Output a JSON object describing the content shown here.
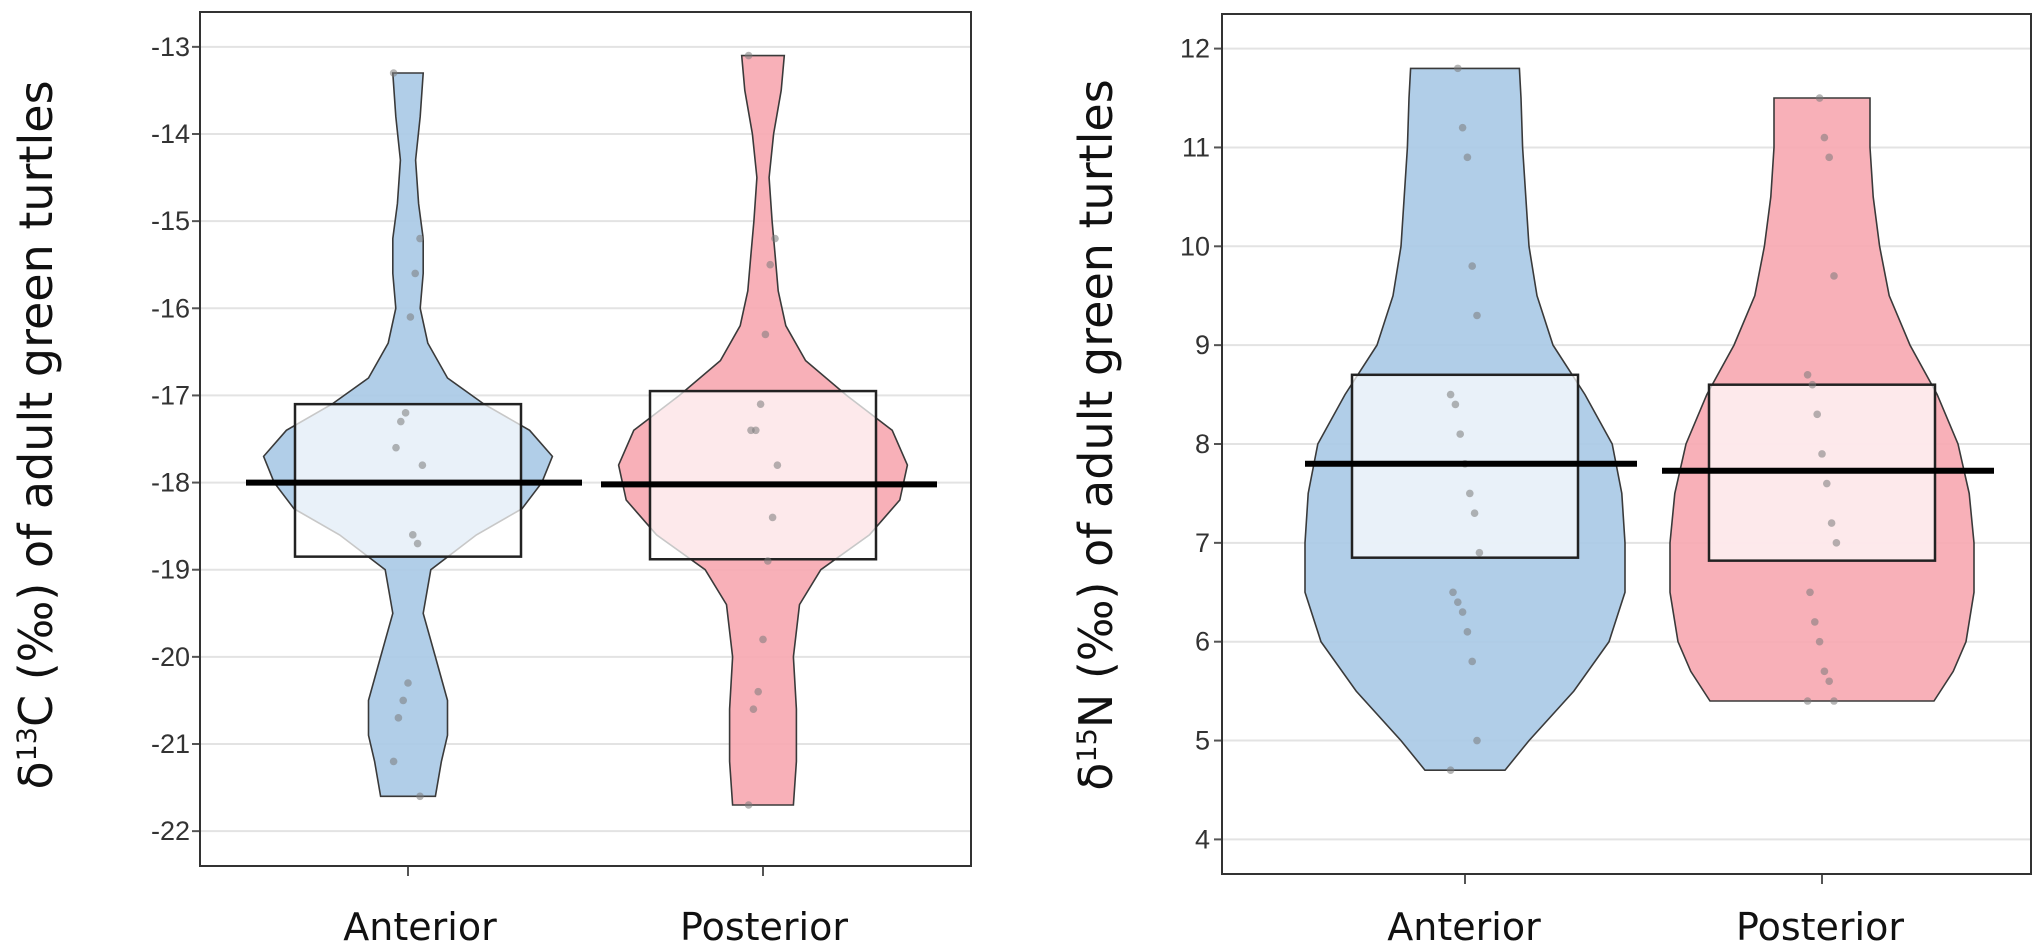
{
  "chart_data": [
    {
      "type": "pirate",
      "ylabel_parts": [
        "δ",
        "13",
        "C  (‰) of adult green turtles"
      ],
      "categories": [
        "Anterior",
        "Posterior"
      ],
      "ylim": [
        -22.4,
        -12.6
      ],
      "yticks": [
        -13,
        -14,
        -15,
        -16,
        -17,
        -18,
        -19,
        -20,
        -21,
        -22
      ],
      "grid": true,
      "groups": [
        {
          "name": "Anterior",
          "color": "#a9c9e6",
          "mean": -18.0,
          "box": [
            -18.85,
            -17.1
          ],
          "range": [
            -21.6,
            -13.3
          ],
          "points": [
            -13.3,
            -15.2,
            -15.6,
            -16.1,
            -17.2,
            -17.3,
            -17.6,
            -17.8,
            -18.7,
            -18.6,
            -20.3,
            -20.5,
            -20.7,
            -21.2,
            -21.6
          ],
          "density": [
            [
              -21.6,
              0.18
            ],
            [
              -21.2,
              0.22
            ],
            [
              -20.9,
              0.26
            ],
            [
              -20.5,
              0.26
            ],
            [
              -20.0,
              0.18
            ],
            [
              -19.5,
              0.1
            ],
            [
              -19.0,
              0.15
            ],
            [
              -18.6,
              0.45
            ],
            [
              -18.3,
              0.75
            ],
            [
              -18.0,
              0.88
            ],
            [
              -17.7,
              0.95
            ],
            [
              -17.4,
              0.8
            ],
            [
              -17.1,
              0.5
            ],
            [
              -16.8,
              0.26
            ],
            [
              -16.4,
              0.13
            ],
            [
              -16.0,
              0.08
            ],
            [
              -15.6,
              0.1
            ],
            [
              -15.2,
              0.1
            ],
            [
              -14.8,
              0.07
            ],
            [
              -14.3,
              0.05
            ],
            [
              -13.8,
              0.08
            ],
            [
              -13.3,
              0.1
            ]
          ]
        },
        {
          "name": "Posterior",
          "color": "#f7a7b0",
          "mean": -18.02,
          "box": [
            -18.88,
            -16.95
          ],
          "range": [
            -21.7,
            -13.1
          ],
          "points": [
            -13.1,
            -15.2,
            -15.5,
            -16.3,
            -17.1,
            -17.4,
            -17.4,
            -17.8,
            -18.4,
            -18.9,
            -19.8,
            -20.4,
            -20.6,
            -21.7
          ],
          "density": [
            [
              -21.7,
              0.2
            ],
            [
              -21.2,
              0.22
            ],
            [
              -20.6,
              0.22
            ],
            [
              -20.0,
              0.2
            ],
            [
              -19.4,
              0.24
            ],
            [
              -19.0,
              0.38
            ],
            [
              -18.6,
              0.7
            ],
            [
              -18.2,
              0.9
            ],
            [
              -17.8,
              0.95
            ],
            [
              -17.4,
              0.85
            ],
            [
              -17.0,
              0.55
            ],
            [
              -16.6,
              0.28
            ],
            [
              -16.2,
              0.15
            ],
            [
              -15.8,
              0.1
            ],
            [
              -15.4,
              0.08
            ],
            [
              -15.0,
              0.06
            ],
            [
              -14.5,
              0.04
            ],
            [
              -14.0,
              0.07
            ],
            [
              -13.5,
              0.12
            ],
            [
              -13.1,
              0.14
            ]
          ]
        }
      ]
    },
    {
      "type": "pirate",
      "ylabel_parts": [
        "δ",
        "15",
        "N (‰) of adult green turtles"
      ],
      "categories": [
        "Anterior",
        "Posterior"
      ],
      "ylim": [
        3.65,
        12.35
      ],
      "yticks": [
        4,
        5,
        6,
        7,
        8,
        9,
        10,
        11,
        12
      ],
      "grid": true,
      "groups": [
        {
          "name": "Anterior",
          "color": "#a9c9e6",
          "mean": 7.8,
          "box": [
            6.85,
            8.7
          ],
          "range": [
            4.7,
            11.8
          ],
          "points": [
            4.7,
            5.0,
            5.8,
            6.1,
            6.3,
            6.4,
            6.5,
            6.9,
            7.3,
            7.5,
            7.8,
            8.1,
            8.4,
            8.5,
            9.3,
            9.8,
            10.9,
            11.2,
            11.8
          ],
          "density": [
            [
              4.7,
              0.25
            ],
            [
              5.0,
              0.4
            ],
            [
              5.5,
              0.68
            ],
            [
              6.0,
              0.9
            ],
            [
              6.5,
              1.0
            ],
            [
              7.0,
              1.0
            ],
            [
              7.5,
              0.98
            ],
            [
              8.0,
              0.92
            ],
            [
              8.5,
              0.75
            ],
            [
              9.0,
              0.55
            ],
            [
              9.5,
              0.45
            ],
            [
              10.0,
              0.4
            ],
            [
              10.5,
              0.38
            ],
            [
              11.0,
              0.36
            ],
            [
              11.5,
              0.35
            ],
            [
              11.8,
              0.34
            ]
          ]
        },
        {
          "name": "Posterior",
          "color": "#f7a7b0",
          "mean": 7.73,
          "box": [
            6.82,
            8.6
          ],
          "range": [
            5.4,
            11.5
          ],
          "points": [
            5.4,
            5.4,
            5.6,
            5.7,
            6.0,
            6.2,
            6.5,
            7.0,
            7.2,
            7.6,
            7.9,
            8.3,
            8.6,
            8.7,
            9.7,
            10.9,
            11.1,
            11.5
          ],
          "density": [
            [
              5.4,
              0.7
            ],
            [
              5.7,
              0.82
            ],
            [
              6.0,
              0.9
            ],
            [
              6.5,
              0.95
            ],
            [
              7.0,
              0.95
            ],
            [
              7.5,
              0.92
            ],
            [
              8.0,
              0.85
            ],
            [
              8.5,
              0.72
            ],
            [
              9.0,
              0.55
            ],
            [
              9.5,
              0.42
            ],
            [
              10.0,
              0.36
            ],
            [
              10.5,
              0.32
            ],
            [
              11.0,
              0.3
            ],
            [
              11.5,
              0.3
            ]
          ]
        }
      ]
    }
  ]
}
